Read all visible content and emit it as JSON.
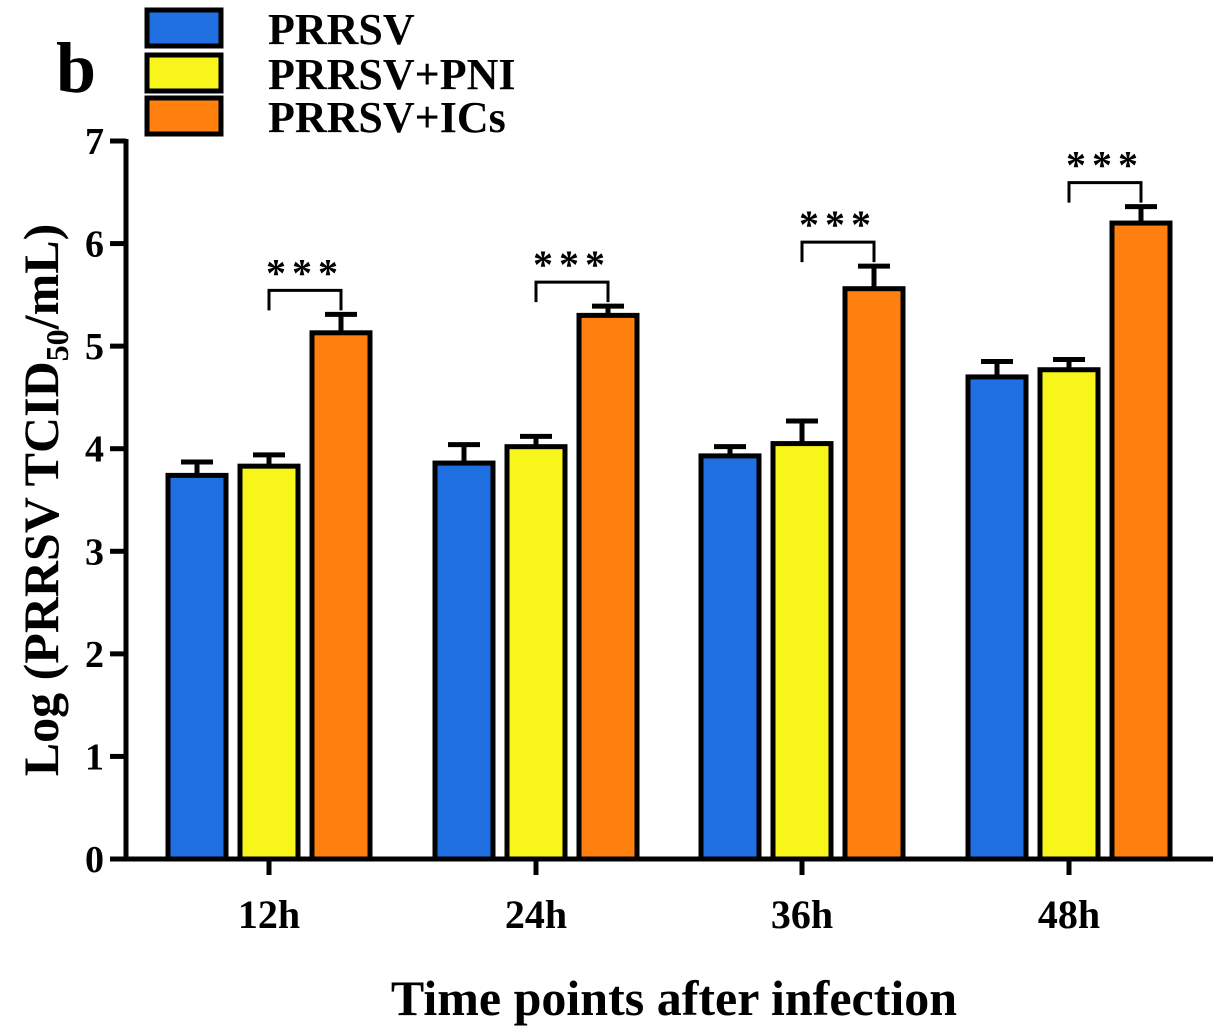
{
  "panel_label": "b",
  "chart_data": {
    "type": "bar",
    "categories": [
      "12h",
      "24h",
      "36h",
      "48h"
    ],
    "series": [
      {
        "name": "PRRSV",
        "color": "#1f6fe0",
        "values": [
          3.74,
          3.86,
          3.93,
          4.7
        ],
        "errors": [
          0.13,
          0.18,
          0.09,
          0.15
        ]
      },
      {
        "name": "PRRSV+PNI",
        "color": "#f8f51a",
        "values": [
          3.83,
          4.02,
          4.05,
          4.77
        ],
        "errors": [
          0.11,
          0.1,
          0.22,
          0.1
        ]
      },
      {
        "name": "PRRSV+ICs",
        "color": "#ff7f0f",
        "values": [
          5.13,
          5.3,
          5.56,
          6.2
        ],
        "errors": [
          0.18,
          0.09,
          0.22,
          0.16
        ]
      }
    ],
    "significance": [
      {
        "category": "12h",
        "label": "***"
      },
      {
        "category": "24h",
        "label": "***"
      },
      {
        "category": "36h",
        "label": "***"
      },
      {
        "category": "48h",
        "label": "***"
      }
    ],
    "xlabel": "Time points after infection",
    "ylabel_prefix": "Log (PRRSV TCID",
    "ylabel_sub": "50",
    "ylabel_suffix": "/mL)",
    "ylim": [
      0,
      7
    ],
    "yticks": [
      "0",
      "1",
      "2",
      "3",
      "4",
      "5",
      "6",
      "7"
    ],
    "grid": false,
    "legend_position": "top-left"
  }
}
